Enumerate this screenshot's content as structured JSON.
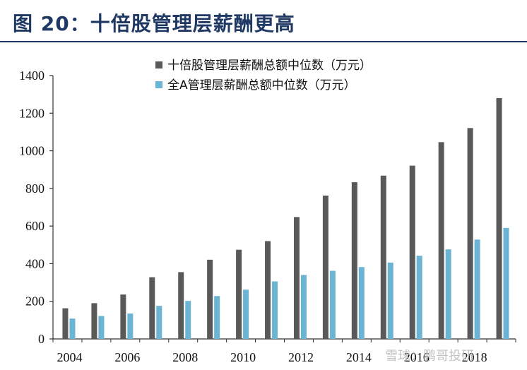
{
  "header": {
    "title": "图 20：十倍股管理层薪酬更高"
  },
  "watermark": "雪球：鹏哥投研",
  "colors": {
    "series1": "#595959",
    "series2": "#6cb4d4",
    "axis": "#333333",
    "title": "#1f3864"
  },
  "chart_data": {
    "type": "bar",
    "title": "",
    "xlabel": "",
    "ylabel": "",
    "categories": [
      "2004",
      "2005",
      "2006",
      "2007",
      "2008",
      "2009",
      "2010",
      "2011",
      "2012",
      "2013",
      "2014",
      "2015",
      "2016",
      "2017",
      "2018",
      "2019"
    ],
    "x_tick_labels": [
      "2004",
      "2006",
      "2008",
      "2010",
      "2012",
      "2014",
      "2016",
      "2018"
    ],
    "ylim": [
      0,
      1400
    ],
    "yticks": [
      0,
      200,
      400,
      600,
      800,
      1000,
      1200,
      1400
    ],
    "grid": false,
    "legend_position": "top",
    "series": [
      {
        "name": "十倍股管理层薪酬总额中位数（万元）",
        "values": [
          163,
          190,
          236,
          328,
          355,
          421,
          474,
          520,
          648,
          762,
          833,
          868,
          921,
          1046,
          1121,
          1280
        ]
      },
      {
        "name": "全A管理层薪酬总额中位数（万元）",
        "values": [
          108,
          122,
          135,
          176,
          202,
          228,
          262,
          306,
          340,
          362,
          382,
          406,
          442,
          476,
          528,
          590
        ]
      }
    ]
  }
}
